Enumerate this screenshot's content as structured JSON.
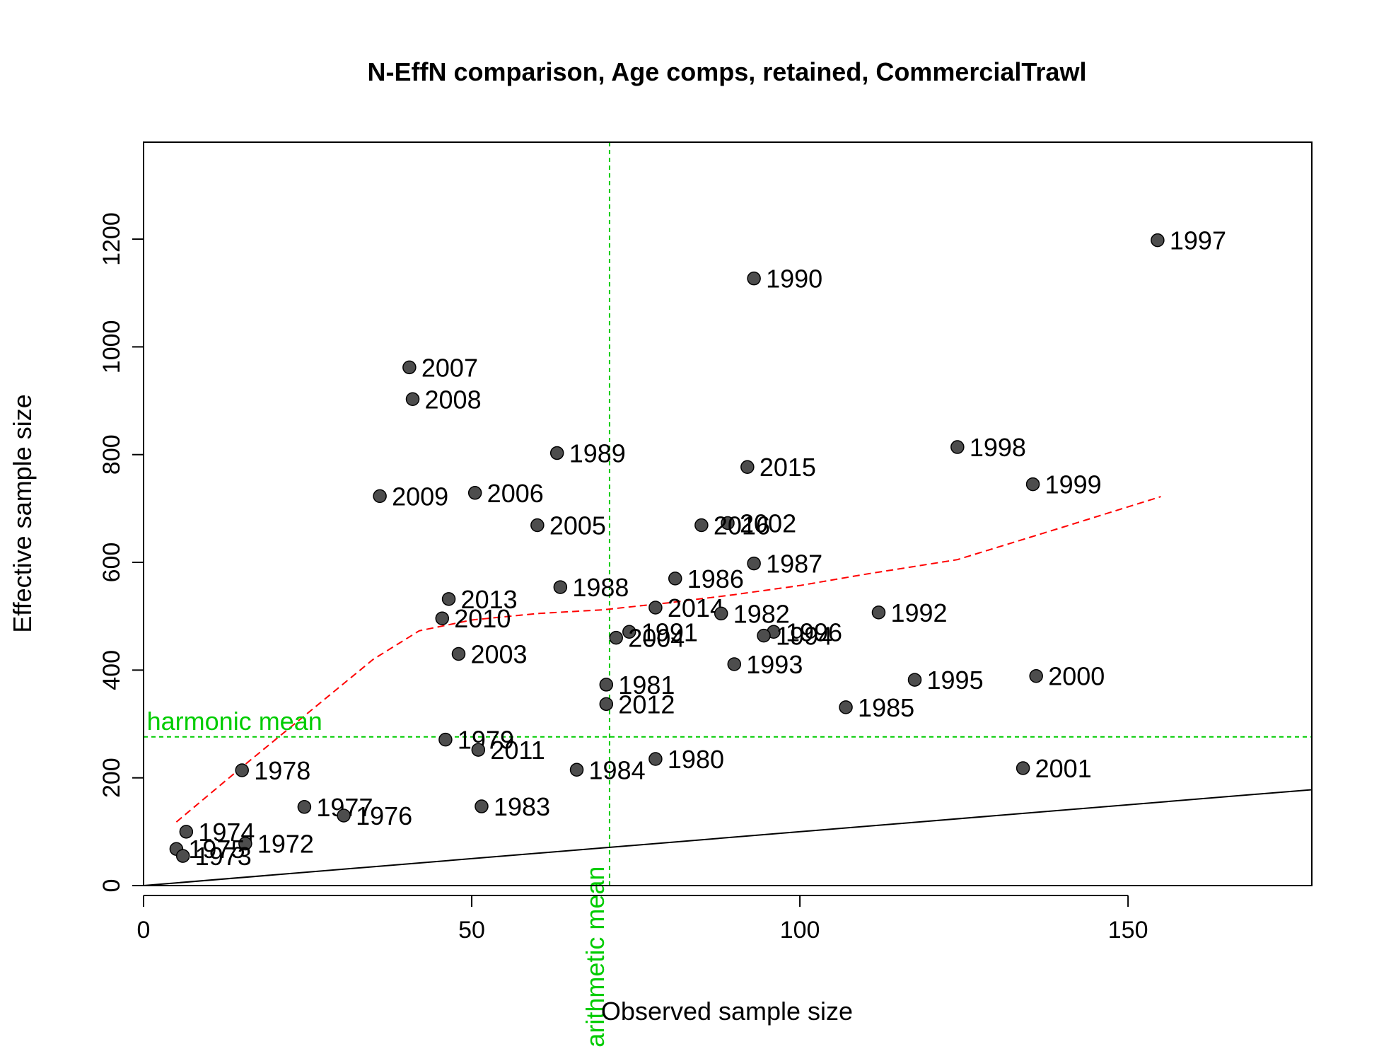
{
  "chart_data": {
    "type": "scatter",
    "title": "N-EffN comparison, Age comps, retained, CommercialTrawl",
    "xlabel": "Observed sample size",
    "ylabel": "Effective sample size",
    "xlim": [
      0,
      178
    ],
    "ylim": [
      0,
      1380
    ],
    "xticks": [
      "0",
      "50",
      "100",
      "150"
    ],
    "yticks": [
      "0",
      "200",
      "400",
      "600",
      "800",
      "1000",
      "1200"
    ],
    "grid": false,
    "colors": {
      "points": "#4d4d4d",
      "reference": "#00cc00",
      "smoother": "#ff0000",
      "identity": "#000000"
    },
    "points": [
      {
        "x": 154.5,
        "y": 1198,
        "label": "1997"
      },
      {
        "x": 93,
        "y": 1127,
        "label": "1990"
      },
      {
        "x": 40.5,
        "y": 962,
        "label": "2007"
      },
      {
        "x": 41,
        "y": 903,
        "label": "2008"
      },
      {
        "x": 124,
        "y": 814,
        "label": "1998"
      },
      {
        "x": 63,
        "y": 803,
        "label": "1989"
      },
      {
        "x": 92,
        "y": 777,
        "label": "2015"
      },
      {
        "x": 135.5,
        "y": 745,
        "label": "1999"
      },
      {
        "x": 50.5,
        "y": 729,
        "label": "2006"
      },
      {
        "x": 36,
        "y": 723,
        "label": "2009"
      },
      {
        "x": 60,
        "y": 669,
        "label": "2005"
      },
      {
        "x": 89,
        "y": 673,
        "label": "2002"
      },
      {
        "x": 85,
        "y": 669,
        "label": "2016"
      },
      {
        "x": 93,
        "y": 598,
        "label": "1987"
      },
      {
        "x": 81,
        "y": 570,
        "label": "1986"
      },
      {
        "x": 63.5,
        "y": 554,
        "label": "1988"
      },
      {
        "x": 46.5,
        "y": 532,
        "label": "2013"
      },
      {
        "x": 78,
        "y": 516,
        "label": "2014"
      },
      {
        "x": 88,
        "y": 505,
        "label": "1982"
      },
      {
        "x": 112,
        "y": 507,
        "label": "1992"
      },
      {
        "x": 45.5,
        "y": 496,
        "label": "2010"
      },
      {
        "x": 74,
        "y": 471,
        "label": "1991"
      },
      {
        "x": 96,
        "y": 471,
        "label": "1996"
      },
      {
        "x": 72,
        "y": 460,
        "label": "2004"
      },
      {
        "x": 94.5,
        "y": 464,
        "label": "1994"
      },
      {
        "x": 48,
        "y": 430,
        "label": "2003"
      },
      {
        "x": 90,
        "y": 411,
        "label": "1993"
      },
      {
        "x": 136,
        "y": 389,
        "label": "2000"
      },
      {
        "x": 117.5,
        "y": 382,
        "label": "1995"
      },
      {
        "x": 70.5,
        "y": 373,
        "label": "1981"
      },
      {
        "x": 70.5,
        "y": 337,
        "label": "2012"
      },
      {
        "x": 107,
        "y": 331,
        "label": "1985"
      },
      {
        "x": 46,
        "y": 271,
        "label": "1979"
      },
      {
        "x": 51,
        "y": 252,
        "label": "2011"
      },
      {
        "x": 78,
        "y": 235,
        "label": "1980"
      },
      {
        "x": 134,
        "y": 218,
        "label": "2001"
      },
      {
        "x": 66,
        "y": 215,
        "label": "1984"
      },
      {
        "x": 15,
        "y": 214,
        "label": "1978"
      },
      {
        "x": 51.5,
        "y": 147,
        "label": "1983"
      },
      {
        "x": 24.5,
        "y": 146,
        "label": "1977"
      },
      {
        "x": 30.5,
        "y": 130,
        "label": "1976"
      },
      {
        "x": 6.5,
        "y": 100,
        "label": "1974"
      },
      {
        "x": 15.5,
        "y": 78,
        "label": "1972"
      },
      {
        "x": 5,
        "y": 68,
        "label": "1975"
      },
      {
        "x": 6,
        "y": 55,
        "label": "1973"
      }
    ],
    "harmonic_mean": {
      "y": 276,
      "label": "harmonic mean"
    },
    "arithmetic_mean": {
      "x": 71,
      "label": "arithmetic mean"
    },
    "smoother": {
      "x": [
        5,
        15,
        25,
        35,
        42,
        50,
        60,
        70,
        80,
        90,
        100,
        110,
        124,
        140,
        155
      ],
      "y": [
        118,
        220,
        320,
        420,
        473,
        493,
        505,
        512,
        525,
        540,
        557,
        578,
        605,
        665,
        722
      ]
    },
    "identity_line": {
      "x": [
        0,
        178
      ],
      "y": [
        0,
        178
      ]
    }
  }
}
